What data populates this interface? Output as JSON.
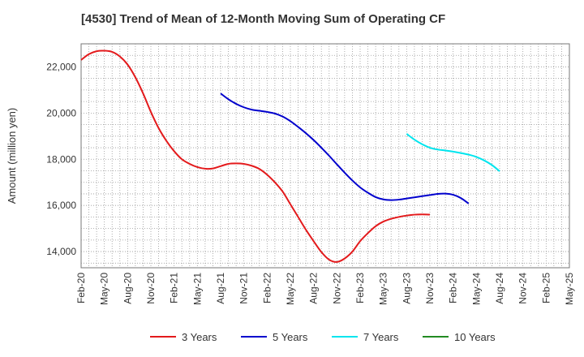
{
  "chart_data": {
    "type": "line",
    "title": "[4530]  Trend of Mean of 12-Month Moving Sum of Operating CF",
    "xlabel": "",
    "ylabel": "Amount (million yen)",
    "ylim": [
      13300,
      23000
    ],
    "yticks": [
      14000,
      16000,
      18000,
      20000,
      22000
    ],
    "ytick_labels": [
      "14,000",
      "16,000",
      "18,000",
      "20,000",
      "22,000"
    ],
    "x_ticks": [
      "Feb-20",
      "May-20",
      "Aug-20",
      "Nov-20",
      "Feb-21",
      "May-21",
      "Aug-21",
      "Nov-21",
      "Feb-22",
      "May-22",
      "Aug-22",
      "Nov-22",
      "Feb-23",
      "May-23",
      "Aug-23",
      "Nov-23",
      "Feb-24",
      "May-24",
      "Aug-24",
      "Nov-24",
      "Feb-25",
      "May-25"
    ],
    "grid": true,
    "legend_position": "bottom",
    "series": [
      {
        "name": "3 Years",
        "color": "#e31a1c",
        "start_index": 0,
        "values": [
          22300,
          22550,
          22680,
          22700,
          22650,
          22450,
          22100,
          21550,
          20850,
          20050,
          19350,
          18800,
          18350,
          18000,
          17800,
          17660,
          17590,
          17600,
          17700,
          17800,
          17820,
          17800,
          17720,
          17580,
          17330,
          17000,
          16600,
          16050,
          15500,
          14950,
          14450,
          13980,
          13650,
          13550,
          13700,
          14000,
          14450,
          14800,
          15100,
          15300,
          15420,
          15500,
          15560,
          15600,
          15610,
          15600
        ]
      },
      {
        "name": "5 Years",
        "color": "#0000cd",
        "start_index": 18,
        "values": [
          20850,
          20600,
          20400,
          20250,
          20150,
          20100,
          20050,
          19980,
          19850,
          19650,
          19400,
          19130,
          18830,
          18500,
          18150,
          17780,
          17420,
          17080,
          16780,
          16550,
          16360,
          16260,
          16230,
          16250,
          16300,
          16350,
          16400,
          16450,
          16500,
          16510,
          16460,
          16320,
          16080
        ]
      },
      {
        "name": "7 Years",
        "color": "#00e5ee",
        "start_index": 42,
        "values": [
          19100,
          18850,
          18650,
          18500,
          18420,
          18380,
          18330,
          18270,
          18200,
          18100,
          17950,
          17750,
          17480
        ]
      },
      {
        "name": "10 Years",
        "color": "#228b22",
        "start_index": 0,
        "values": []
      }
    ]
  }
}
